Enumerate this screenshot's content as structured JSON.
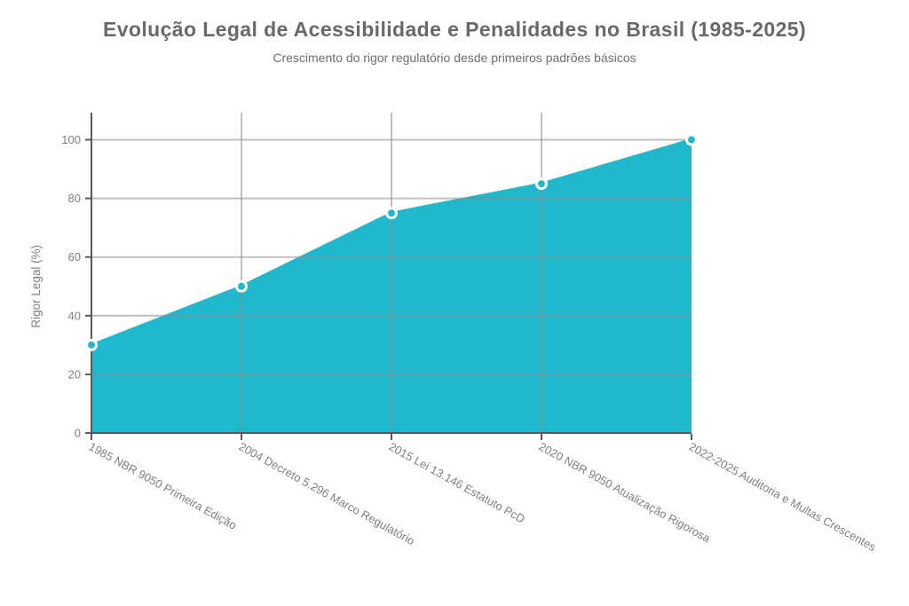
{
  "chart_data": {
    "type": "area",
    "title": "Evolução Legal de Acessibilidade e Penalidades no Brasil (1985-2025)",
    "subtitle": "Crescimento do rigor regulatório desde primeiros padrões básicos",
    "categories": [
      "1985 NBR 9050 Primeira Edição",
      "2004 Decreto 5.296 Marco Regulatório",
      "2015 Lei 13.146 Estatuto PcD",
      "2020 NBR 9050 Atualização Rigorosa",
      "2022-2025 Auditoria e Multas Crescentes"
    ],
    "values": [
      30,
      50,
      75,
      85,
      100
    ],
    "xlabel": "",
    "ylabel": "Rigor Legal (%)",
    "ylim": [
      0,
      100
    ],
    "yticks": [
      0,
      20,
      40,
      60,
      80,
      100
    ],
    "grid": true,
    "legend": false,
    "marker_style": "circle",
    "colors": {
      "area": "#1FB8CD",
      "line": "#1FB8CD",
      "marker_fill": "#1FB8CD",
      "marker_stroke": "#FFFFFF",
      "grid": "#8C8C8C",
      "axis": "#5A5A5A",
      "tick_text": "#808080",
      "title_text": "#696969"
    }
  }
}
